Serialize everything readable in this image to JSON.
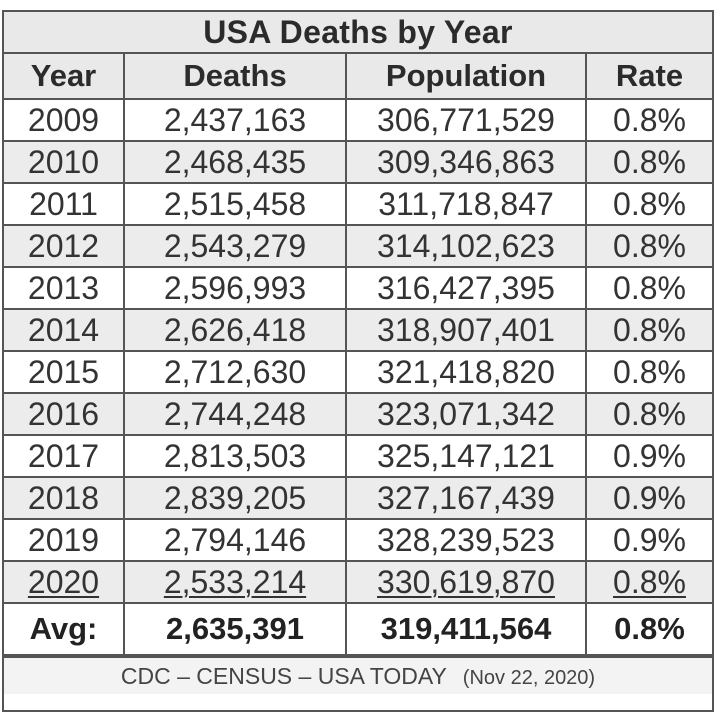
{
  "title": "USA Deaths by Year",
  "columns": {
    "year": "Year",
    "deaths": "Deaths",
    "population": "Population",
    "rate": "Rate"
  },
  "rows": [
    {
      "year": "2009",
      "deaths": "2,437,163",
      "population": "306,771,529",
      "rate": "0.8%"
    },
    {
      "year": "2010",
      "deaths": "2,468,435",
      "population": "309,346,863",
      "rate": "0.8%"
    },
    {
      "year": "2011",
      "deaths": "2,515,458",
      "population": "311,718,847",
      "rate": "0.8%"
    },
    {
      "year": "2012",
      "deaths": "2,543,279",
      "population": "314,102,623",
      "rate": "0.8%"
    },
    {
      "year": "2013",
      "deaths": "2,596,993",
      "population": "316,427,395",
      "rate": "0.8%"
    },
    {
      "year": "2014",
      "deaths": "2,626,418",
      "population": "318,907,401",
      "rate": "0.8%"
    },
    {
      "year": "2015",
      "deaths": "2,712,630",
      "population": "321,418,820",
      "rate": "0.8%"
    },
    {
      "year": "2016",
      "deaths": "2,744,248",
      "population": "323,071,342",
      "rate": "0.8%"
    },
    {
      "year": "2017",
      "deaths": "2,813,503",
      "population": "325,147,121",
      "rate": "0.9%"
    },
    {
      "year": "2018",
      "deaths": "2,839,205",
      "population": "327,167,439",
      "rate": "0.9%"
    },
    {
      "year": "2019",
      "deaths": "2,794,146",
      "population": "328,239,523",
      "rate": "0.9%"
    },
    {
      "year": "2020",
      "deaths": "2,533,214",
      "population": "330,619,870",
      "rate": "0.8%"
    }
  ],
  "average": {
    "label": "Avg:",
    "deaths": "2,635,391",
    "population": "319,411,564",
    "rate": "0.8%"
  },
  "footer": {
    "source": "CDC – CENSUS – USA TODAY",
    "date": "(Nov 22, 2020)"
  }
}
